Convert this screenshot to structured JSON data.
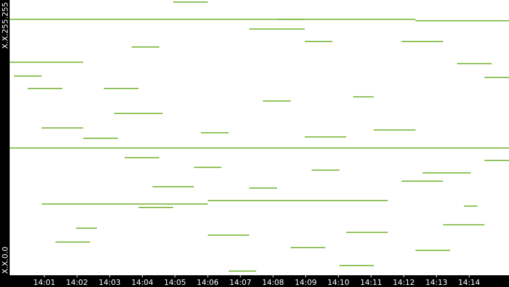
{
  "chart_data": {
    "type": "flows",
    "x": [
      839.94,
      839.94,
      839.94,
      843.14,
      847.27,
      848.12,
      852.36,
      844.94,
      848.97,
      843.67,
      853.63,
      851.93,
      840.49,
      842.82,
      847.69,
      850.45,
      840.92,
      845.79,
      851.08,
      842.19,
      848.97,
      843.46,
      845.58,
      849.18,
      852.57,
      844.31,
      847.27,
      851.93,
      840.92,
      846.0,
      843.88,
      841.97,
      846.0,
      850.24,
      853.2,
      841.34,
      848.54,
      852.36,
      846.64,
      850.03,
      853.84,
      854.47,
      840.07,
      854.47
    ],
    "x_end": [
      848.97,
      855.22,
      842.19,
      844.62,
      848.97,
      852.36,
      855.22,
      846.0,
      849.81,
      844.52,
      854.69,
      853.2,
      841.55,
      843.88,
      848.54,
      851.08,
      842.19,
      846.64,
      852.36,
      843.25,
      850.24,
      844.52,
      846.42,
      850.03,
      854.05,
      845.58,
      848.12,
      853.2,
      846.0,
      851.51,
      844.94,
      842.61,
      847.27,
      851.51,
      854.47,
      842.4,
      849.6,
      853.42,
      847.48,
      851.08,
      854.26,
      855.22,
      840.92,
      855.22
    ],
    "values": [
      60925,
      30297,
      50715,
      38530,
      58619,
      60925,
      60595,
      65041,
      55655,
      54338,
      50386,
      55655,
      44458,
      44458,
      41494,
      42482,
      35073,
      33920,
      34579,
      32603,
      32932,
      27992,
      25687,
      25028,
      24370,
      21076,
      20747,
      22394,
      16960,
      17783,
      16137,
      11197,
      9550,
      10209,
      12020,
      7904,
      6586,
      5928,
      988,
      2305,
      16466,
      27334,
      47422,
      47093
    ],
    "color": "#6aad24",
    "xlim": [
      839.94,
      855.22
    ],
    "xticks": [
      {
        "value": 841,
        "label": "14:01"
      },
      {
        "value": 842,
        "label": "14:02"
      },
      {
        "value": 843,
        "label": "14:03"
      },
      {
        "value": 844,
        "label": "14:04"
      },
      {
        "value": 845,
        "label": "14:05"
      },
      {
        "value": 846,
        "label": "14:06"
      },
      {
        "value": 847,
        "label": "14:07"
      },
      {
        "value": 848,
        "label": "14:08"
      },
      {
        "value": 849,
        "label": "14:09"
      },
      {
        "value": 850,
        "label": "14:10"
      },
      {
        "value": 851,
        "label": "14:11"
      },
      {
        "value": 852,
        "label": "14:12"
      },
      {
        "value": 853,
        "label": "14:13"
      },
      {
        "value": 854,
        "label": "14:14"
      }
    ],
    "ylim": [
      0,
      65535
    ],
    "yticks": [
      {
        "value": 0,
        "label": "X.X.0.0"
      },
      {
        "value": 65535,
        "label": "X.X.255.255"
      }
    ]
  }
}
